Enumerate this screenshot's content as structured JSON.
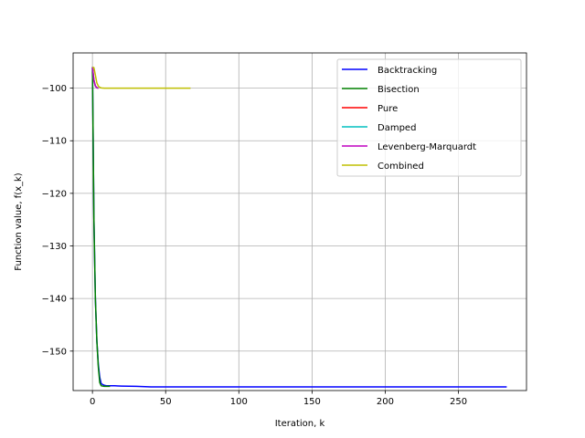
{
  "chart_data": {
    "type": "line",
    "title": "",
    "xlabel": "Iteration, k",
    "ylabel": "Function value, f(x_k)",
    "xlim": [
      -13.2,
      296.5
    ],
    "ylim": [
      -157.5,
      -93.3
    ],
    "xticks": [
      0,
      50,
      100,
      150,
      200,
      250
    ],
    "yticks": [
      -150,
      -140,
      -130,
      -120,
      -110,
      -100
    ],
    "xtick_labels": [
      "0",
      "50",
      "100",
      "150",
      "200",
      "250"
    ],
    "ytick_labels": [
      "−150",
      "−140",
      "−130",
      "−120",
      "−110",
      "−100"
    ],
    "grid": true,
    "legend_position": "top-right",
    "series": [
      {
        "name": "Backtracking",
        "color": "#0000ff",
        "x": [
          0,
          1,
          2,
          3,
          4,
          5,
          6,
          8,
          10,
          15,
          20,
          30,
          40,
          60,
          100,
          150,
          200,
          250,
          283
        ],
        "y": [
          -96,
          -125,
          -140,
          -148,
          -152.5,
          -155,
          -156.2,
          -156.5,
          -156.6,
          -156.6,
          -156.65,
          -156.7,
          -156.8,
          -156.8,
          -156.8,
          -156.8,
          -156.8,
          -156.8,
          -156.8
        ]
      },
      {
        "name": "Bisection",
        "color": "#008000",
        "x": [
          0,
          1,
          2,
          3,
          4,
          5,
          6,
          8,
          10,
          12
        ],
        "y": [
          -96,
          -125,
          -140,
          -148,
          -153,
          -156,
          -156.6,
          -156.7,
          -156.7,
          -156.7
        ]
      },
      {
        "name": "Pure",
        "color": "#ff0000",
        "x": [
          0,
          1,
          2,
          3,
          4
        ],
        "y": [
          -96,
          -98.5,
          -99.6,
          -99.9,
          -100
        ]
      },
      {
        "name": "Damped",
        "color": "#00bfbf",
        "x": [
          0,
          1,
          2,
          3,
          4
        ],
        "y": [
          -96,
          -98.5,
          -99.6,
          -99.9,
          -100
        ]
      },
      {
        "name": "Levenberg-Marquardt",
        "color": "#bf00bf",
        "x": [
          0,
          1,
          2,
          3,
          4
        ],
        "y": [
          -96,
          -98.5,
          -99.6,
          -99.9,
          -100
        ]
      },
      {
        "name": "Combined",
        "color": "#bfbf00",
        "x": [
          0,
          1,
          2,
          3,
          4,
          5,
          6,
          8,
          10,
          15,
          20,
          40,
          67
        ],
        "y": [
          -96,
          -96.1,
          -97.5,
          -99,
          -99.6,
          -99.85,
          -99.95,
          -100,
          -100,
          -100,
          -100,
          -100,
          -100
        ]
      }
    ]
  }
}
